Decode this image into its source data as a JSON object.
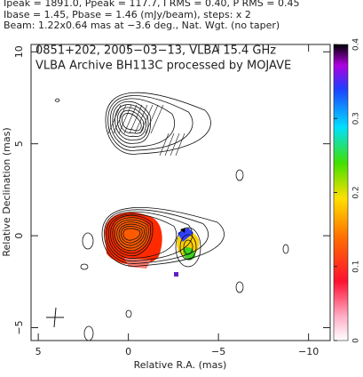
{
  "chart_data": {
    "type": "contour",
    "header": [
      "Ipeak = 1891.0, Ppeak = 117.7, I RMS = 0.40, P RMS = 0.45",
      "Ibase = 1.45, Pbase = 1.46 (mJy/beam), steps: x 2",
      "Beam: 1.22x0.64 mas at −3.6 deg., Nat. Wgt. (no taper)"
    ],
    "title": "0851+202, 2005−03−13, VLBA 15.4 GHz",
    "subtitle": "VLBA Archive BH113C processed by MOJAVE",
    "xlabel": "Relative R.A. (mas)",
    "ylabel": "Relative Declination (mas)",
    "xlim": [
      5.4,
      -11.2
    ],
    "xticks": [
      5,
      0,
      {
        "value": -5,
        "label": "−5"
      },
      {
        "value": -10,
        "label": "−10"
      }
    ],
    "ylim": [
      -5.7,
      10.4
    ],
    "yticks": [
      {
        "value": -5,
        "label": "−5"
      },
      0,
      5,
      10
    ],
    "clim": [
      0,
      0.4
    ],
    "cticks": [
      0,
      0.1,
      0.2,
      0.3,
      0.4
    ]
  }
}
